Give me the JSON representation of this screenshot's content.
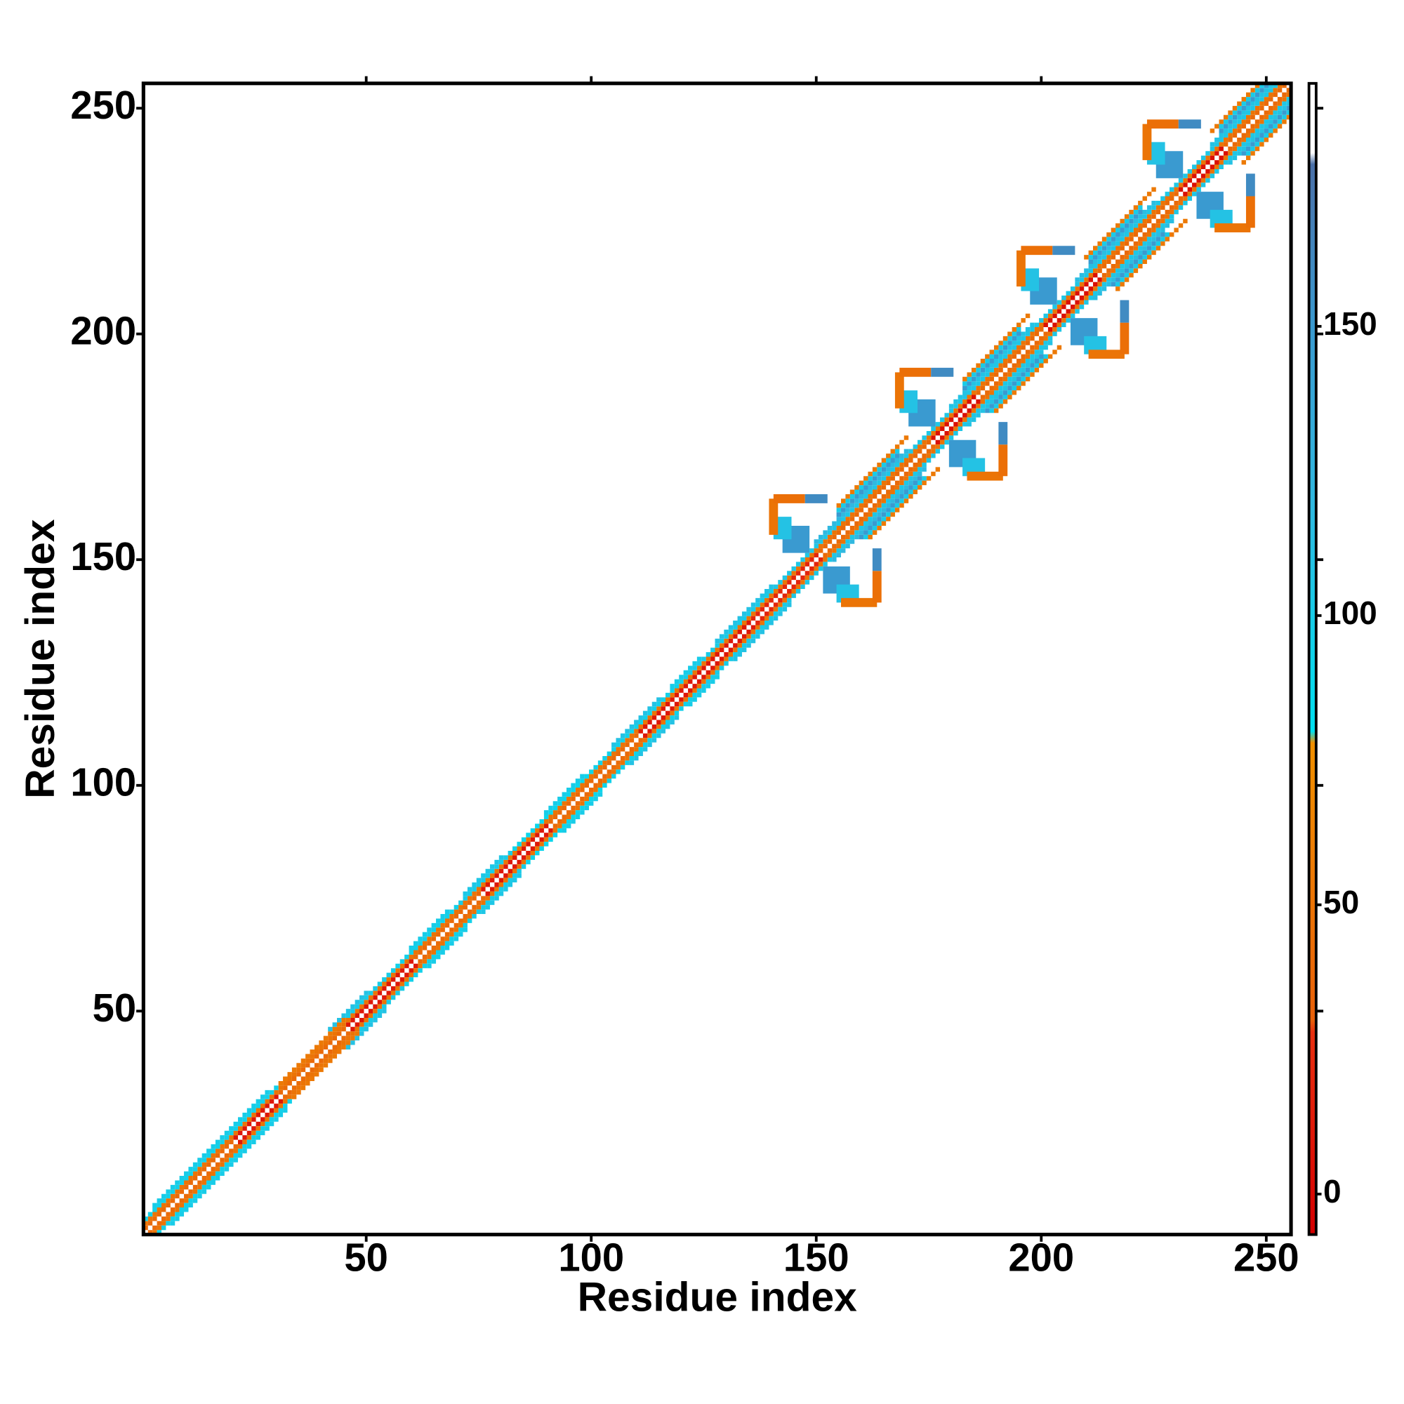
{
  "chart_data": {
    "type": "contact_map",
    "x_label": "Residue index",
    "y_label": "Residue index",
    "xlim": [
      0.5,
      255.5
    ],
    "ylim": [
      0.5,
      255.5
    ],
    "xticks": [
      50,
      100,
      150,
      200,
      250
    ],
    "yticks": [
      50,
      100,
      150,
      200,
      250
    ],
    "symmetric": true,
    "colorbar": {
      "lim": [
        -7,
        192
      ],
      "ticks": [
        0,
        50,
        100,
        150
      ],
      "colorscale": [
        {
          "value": -7,
          "color": "#d40000"
        },
        {
          "value": 28,
          "color": "#e83010"
        },
        {
          "value": 30,
          "color": "#e8600a"
        },
        {
          "value": 78,
          "color": "#f09000"
        },
        {
          "value": 80,
          "color": "#00e0f0"
        },
        {
          "value": 120,
          "color": "#30b8e0"
        },
        {
          "value": 150,
          "color": "#3a9ad0"
        },
        {
          "value": 178,
          "color": "#4a70a8"
        },
        {
          "value": 180,
          "color": "#ffffff"
        },
        {
          "value": 192,
          "color": "#ffffff"
        }
      ]
    },
    "bands": [
      {
        "i0": 1,
        "i1": 20,
        "offset": 1,
        "value": 40
      },
      {
        "i0": 21,
        "i1": 30,
        "offset": 1,
        "value": 10
      },
      {
        "i0": 31,
        "i1": 45,
        "offset": 1,
        "value": 40
      },
      {
        "i0": 46,
        "i1": 60,
        "offset": 1,
        "value": 10
      },
      {
        "i0": 61,
        "i1": 75,
        "offset": 1,
        "value": 40
      },
      {
        "i0": 76,
        "i1": 90,
        "offset": 1,
        "value": 10
      },
      {
        "i0": 91,
        "i1": 110,
        "offset": 1,
        "value": 40
      },
      {
        "i0": 111,
        "i1": 135,
        "offset": 1,
        "value": 10
      },
      {
        "i0": 136,
        "i1": 150,
        "offset": 1,
        "value": 20
      },
      {
        "i0": 151,
        "i1": 175,
        "offset": 1,
        "value": 40
      },
      {
        "i0": 176,
        "i1": 185,
        "offset": 1,
        "value": 5
      },
      {
        "i0": 186,
        "i1": 200,
        "offset": 1,
        "value": 40
      },
      {
        "i0": 201,
        "i1": 212,
        "offset": 1,
        "value": 5
      },
      {
        "i0": 213,
        "i1": 230,
        "offset": 1,
        "value": 40
      },
      {
        "i0": 231,
        "i1": 240,
        "offset": 1,
        "value": 5
      },
      {
        "i0": 241,
        "i1": 254,
        "offset": 1,
        "value": 40
      },
      {
        "i0": 1,
        "i1": 253,
        "offset": 2,
        "value": 50
      },
      {
        "i0": 1,
        "i1": 30,
        "offset": 3,
        "value": 95
      },
      {
        "i0": 31,
        "i1": 45,
        "offset": 3,
        "value": 55
      },
      {
        "i0": 46,
        "i1": 55,
        "offset": 3,
        "value": 100
      },
      {
        "i0": 56,
        "i1": 70,
        "offset": 3,
        "value": 95
      },
      {
        "i0": 71,
        "i1": 82,
        "offset": 3,
        "value": 100
      },
      {
        "i0": 83,
        "i1": 100,
        "offset": 3,
        "value": 90
      },
      {
        "i0": 101,
        "i1": 120,
        "offset": 3,
        "value": 95
      },
      {
        "i0": 121,
        "i1": 140,
        "offset": 3,
        "value": 100
      },
      {
        "i0": 141,
        "i1": 252,
        "offset": 3,
        "value": 105
      },
      {
        "i0": 3,
        "i1": 28,
        "offset": 4,
        "value": 100
      },
      {
        "i0": 42,
        "i1": 50,
        "offset": 4,
        "value": 110
      },
      {
        "i0": 60,
        "i1": 68,
        "offset": 4,
        "value": 100
      },
      {
        "i0": 72,
        "i1": 80,
        "offset": 4,
        "value": 105
      },
      {
        "i0": 90,
        "i1": 98,
        "offset": 4,
        "value": 100
      },
      {
        "i0": 105,
        "i1": 115,
        "offset": 4,
        "value": 110
      },
      {
        "i0": 118,
        "i1": 124,
        "offset": 4,
        "value": 100
      },
      {
        "i0": 128,
        "i1": 140,
        "offset": 4,
        "value": 110
      },
      {
        "i0": 150,
        "i1": 170,
        "offset": 4,
        "value": 120
      },
      {
        "i0": 180,
        "i1": 198,
        "offset": 4,
        "value": 110
      },
      {
        "i0": 208,
        "i1": 225,
        "offset": 4,
        "value": 115
      },
      {
        "i0": 238,
        "i1": 251,
        "offset": 4,
        "value": 110
      },
      {
        "i0": 155,
        "i1": 168,
        "offset": 5,
        "value": 150
      },
      {
        "i0": 183,
        "i1": 195,
        "offset": 5,
        "value": 150
      },
      {
        "i0": 211,
        "i1": 222,
        "offset": 5,
        "value": 150
      },
      {
        "i0": 240,
        "i1": 250,
        "offset": 5,
        "value": 150
      },
      {
        "i0": 155,
        "i1": 168,
        "offset": 6,
        "value": 100
      },
      {
        "i0": 183,
        "i1": 195,
        "offset": 6,
        "value": 100
      },
      {
        "i0": 211,
        "i1": 222,
        "offset": 6,
        "value": 100
      },
      {
        "i0": 240,
        "i1": 249,
        "offset": 6,
        "value": 100
      },
      {
        "i0": 155,
        "i1": 170,
        "offset": 7,
        "value": 55
      },
      {
        "i0": 183,
        "i1": 197,
        "offset": 7,
        "value": 55
      },
      {
        "i0": 210,
        "i1": 225,
        "offset": 7,
        "value": 55
      },
      {
        "i0": 238,
        "i1": 248,
        "offset": 7,
        "value": 55
      }
    ],
    "patches": [
      {
        "x0": 143,
        "x1": 148,
        "y0": 152,
        "y1": 157,
        "value": 150
      },
      {
        "x0": 141,
        "x1": 144,
        "y0": 155,
        "y1": 159,
        "value": 110
      },
      {
        "x0": 140,
        "x1": 141,
        "y0": 156,
        "y1": 163,
        "value": 50
      },
      {
        "x0": 141,
        "x1": 147,
        "y0": 163,
        "y1": 164,
        "value": 45
      },
      {
        "x0": 148,
        "x1": 152,
        "y0": 163,
        "y1": 164,
        "value": 160
      },
      {
        "x0": 171,
        "x1": 176,
        "y0": 180,
        "y1": 185,
        "value": 150
      },
      {
        "x0": 169,
        "x1": 172,
        "y0": 183,
        "y1": 187,
        "value": 110
      },
      {
        "x0": 168,
        "x1": 169,
        "y0": 184,
        "y1": 191,
        "value": 50
      },
      {
        "x0": 169,
        "x1": 175,
        "y0": 191,
        "y1": 192,
        "value": 45
      },
      {
        "x0": 176,
        "x1": 180,
        "y0": 191,
        "y1": 192,
        "value": 160
      },
      {
        "x0": 198,
        "x1": 203,
        "y0": 207,
        "y1": 212,
        "value": 150
      },
      {
        "x0": 196,
        "x1": 199,
        "y0": 210,
        "y1": 214,
        "value": 110
      },
      {
        "x0": 195,
        "x1": 196,
        "y0": 211,
        "y1": 218,
        "value": 50
      },
      {
        "x0": 196,
        "x1": 202,
        "y0": 218,
        "y1": 219,
        "value": 45
      },
      {
        "x0": 203,
        "x1": 207,
        "y0": 218,
        "y1": 219,
        "value": 160
      },
      {
        "x0": 226,
        "x1": 231,
        "y0": 235,
        "y1": 240,
        "value": 150
      },
      {
        "x0": 224,
        "x1": 227,
        "y0": 238,
        "y1": 242,
        "value": 110
      },
      {
        "x0": 223,
        "x1": 224,
        "y0": 239,
        "y1": 246,
        "value": 50
      },
      {
        "x0": 224,
        "x1": 230,
        "y0": 246,
        "y1": 247,
        "value": 45
      },
      {
        "x0": 231,
        "x1": 235,
        "y0": 246,
        "y1": 247,
        "value": 160
      }
    ]
  }
}
